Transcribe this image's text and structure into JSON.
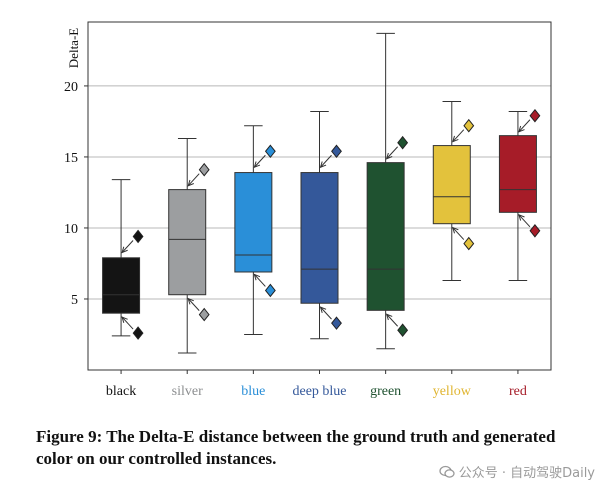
{
  "chart_data": {
    "type": "box",
    "title": "",
    "xlabel": "",
    "ylabel": "Delta-E",
    "ylim": [
      0,
      24.5
    ],
    "yticks": [
      5,
      10,
      15,
      20
    ],
    "grid": "horizontal",
    "categories": [
      "black",
      "silver",
      "blue",
      "deep blue",
      "green",
      "yellow",
      "red"
    ],
    "series": [
      {
        "name": "black",
        "color": "#141414",
        "label_color": "#111111",
        "min": 2.4,
        "q1": 4.0,
        "median": 5.3,
        "q3": 7.9,
        "max": 13.4,
        "diamond_high": 9.4,
        "diamond_low": 2.6
      },
      {
        "name": "silver",
        "color": "#9c9ea0",
        "label_color": "#8c8e90",
        "min": 1.2,
        "q1": 5.3,
        "median": 9.2,
        "q3": 12.7,
        "max": 16.3,
        "diamond_high": 14.1,
        "diamond_low": 3.9
      },
      {
        "name": "blue",
        "color": "#2a8fd8",
        "label_color": "#2a8fd8",
        "min": 2.5,
        "q1": 6.9,
        "median": 8.1,
        "q3": 13.9,
        "max": 17.2,
        "diamond_high": 15.4,
        "diamond_low": 5.6
      },
      {
        "name": "deep blue",
        "color": "#34589a",
        "label_color": "#34589a",
        "min": 2.2,
        "q1": 4.7,
        "median": 7.1,
        "q3": 13.9,
        "max": 18.2,
        "diamond_high": 15.4,
        "diamond_low": 3.3
      },
      {
        "name": "green",
        "color": "#1f5230",
        "label_color": "#1f5230",
        "min": 1.5,
        "q1": 4.2,
        "median": 7.1,
        "q3": 14.6,
        "max": 23.7,
        "diamond_high": 16.0,
        "diamond_low": 2.8
      },
      {
        "name": "yellow",
        "color": "#e3c23c",
        "label_color": "#e0b530",
        "min": 6.3,
        "q1": 10.3,
        "median": 12.2,
        "q3": 15.8,
        "max": 18.9,
        "diamond_high": 17.2,
        "diamond_low": 8.9
      },
      {
        "name": "red",
        "color": "#a61c28",
        "label_color": "#a61c28",
        "min": 6.3,
        "q1": 11.1,
        "median": 12.7,
        "q3": 16.5,
        "max": 18.2,
        "diamond_high": 17.9,
        "diamond_low": 9.8
      }
    ]
  },
  "caption": "Figure 9: The Delta-E distance between the ground truth and generated color on our controlled instances.",
  "watermark": "公众号 · 自动驾驶Daily"
}
